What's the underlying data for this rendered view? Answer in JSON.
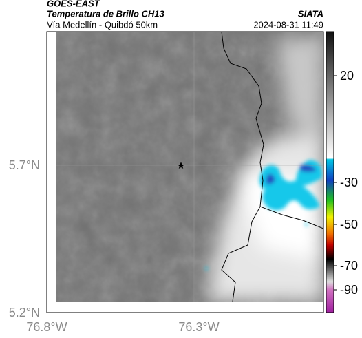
{
  "header": {
    "satellite": "GOES-EAST",
    "product": "Temperatura de Brillo CH13",
    "route": "Vía Medellín - Quibdó 50km",
    "source": "SIATA",
    "timestamp": "2024-08-31 11:49"
  },
  "map": {
    "lat_labels": [
      "5.7°N",
      "5.2°N"
    ],
    "lon_labels": [
      "76.8°W",
      "76.3°W"
    ]
  },
  "colorbar": {
    "labels": [
      "20",
      "-30",
      "-50",
      "-70",
      "-90"
    ]
  }
}
